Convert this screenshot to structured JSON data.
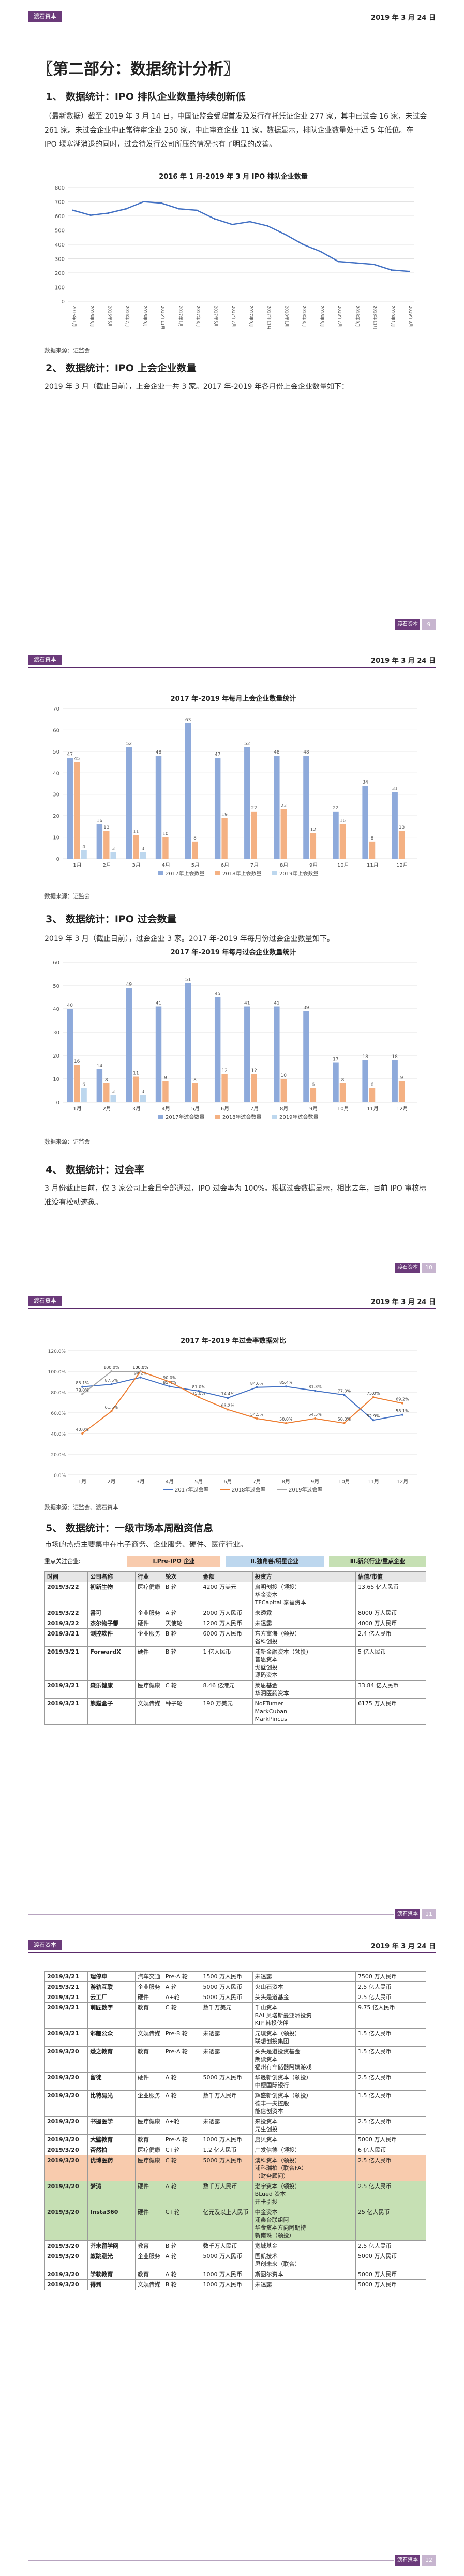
{
  "header": {
    "logo": "渡石资本",
    "date": "2019 年 3 月 24 日"
  },
  "footer": {
    "logo": "渡石资本",
    "pages": [
      "9",
      "10",
      "11",
      "12"
    ]
  },
  "part_title": "〖第二部分：数据统计分析〗",
  "sections": {
    "s1": "1、 数据统计：IPO 排队企业数量持续创新低",
    "s2": "2、 数据统计：IPO 上会企业数量",
    "s3": "3、 数据统计：IPO 过会数量",
    "s4": "4、 数据统计：过会率",
    "s5": "5、 数据统计：一级市场本周融资信息"
  },
  "paragraphs": {
    "p1": "（最新数据）截至 2019 年 3 月 14 日，中国证监会受理首发及发行存托凭证企业 277 家，其中已过会 16 家，未过会 261 家。未过会企业中正常待审企业 250 家，中止审查企业 11 家。数据显示，排队企业数量处于近 5 年低位。在 IPO 堰塞湖消退的同时，过会待发行公司所压的情况也有了明显的改善。",
    "p2": "2019 年 3 月（截止目前），上会企业一共 3 家。2017 年-2019 年各月份上会企业数量如下：",
    "p3": "2019 年 3 月（截止目前），过会企业 3 家。2017 年-2019 年每月份过会企业数量如下。",
    "p4": "3 月份截止目前，仅 3 家公司上会且全部通过，IPO 过会率为 100%。根据过会数据显示，相比去年，目前 IPO 审核标准没有松动迹象。",
    "p5": "市场的热点主要集中在电子商务、企业服务、硬件、医疗行业。"
  },
  "sources": {
    "s1": "数据来源：证监会",
    "s2": "数据来源：证监会",
    "s3": "数据来源：证监会",
    "s4": "数据来源：证监会、渡石资本"
  },
  "charts": {
    "c1_title": "2016 年 1 月-2019 年 3 月 IPO 排队企业数量",
    "c2_title": "2017 年-2019 年每月上会企业数量统计",
    "c3_title": "2017 年-2019 年每月过会企业数量统计",
    "c4_title": "2017 年-2019 年过会率数据对比"
  },
  "chart_data": [
    {
      "type": "line",
      "title": "2016 年 1 月-2019 年 3 月 IPO 排队企业数量",
      "x": [
        "2016年1月",
        "2016年3月",
        "2016年5月",
        "2016年7月",
        "2016年9月",
        "2016年11月",
        "2017年1月",
        "2017年3月",
        "2017年5月",
        "2017年7月",
        "2017年9月",
        "2017年11月",
        "2018年1月",
        "2018年3月",
        "2018年5月",
        "2018年7月",
        "2018年9月",
        "2018年11月",
        "2019年1月",
        "2019年3月"
      ],
      "values": [
        640,
        605,
        620,
        650,
        700,
        690,
        650,
        640,
        580,
        540,
        560,
        530,
        470,
        400,
        350,
        280,
        270,
        260,
        220,
        210
      ],
      "ylim": [
        0,
        800
      ],
      "yticks": [
        0,
        100,
        200,
        300,
        400,
        500,
        600,
        700,
        800
      ]
    },
    {
      "type": "bar",
      "title": "2017 年-2019 年每月上会企业数量统计",
      "categories": [
        "1月",
        "2月",
        "3月",
        "4月",
        "5月",
        "6月",
        "7月",
        "8月",
        "9月",
        "10月",
        "11月",
        "12月"
      ],
      "series": [
        {
          "name": "2017年上会数量",
          "values": [
            47,
            16,
            52,
            48,
            63,
            47,
            52,
            48,
            48,
            22,
            34,
            31
          ],
          "color": "#8eaadb"
        },
        {
          "name": "2018年上会数量",
          "values": [
            45,
            13,
            11,
            10,
            8,
            19,
            22,
            23,
            12,
            16,
            8,
            13
          ],
          "color": "#f4b183"
        },
        {
          "name": "2019年上会数量",
          "values": [
            4,
            3,
            3,
            null,
            null,
            null,
            null,
            null,
            null,
            null,
            null,
            null
          ],
          "color": "#bdd7ee"
        }
      ],
      "ylim": [
        0,
        70
      ],
      "yticks": [
        0,
        10,
        20,
        30,
        40,
        50,
        60,
        70
      ]
    },
    {
      "type": "bar",
      "title": "2017 年-2019 年每月过会企业数量统计",
      "categories": [
        "1月",
        "2月",
        "3月",
        "4月",
        "5月",
        "6月",
        "7月",
        "8月",
        "9月",
        "10月",
        "11月",
        "12月"
      ],
      "series": [
        {
          "name": "2017年过会数量",
          "values": [
            40,
            14,
            49,
            41,
            51,
            45,
            41,
            41,
            39,
            17,
            18,
            18
          ],
          "color": "#8eaadb"
        },
        {
          "name": "2018年过会数量",
          "values": [
            16,
            8,
            11,
            9,
            8,
            12,
            12,
            10,
            6,
            8,
            6,
            9
          ],
          "color": "#f4b183"
        },
        {
          "name": "2019年过会数量",
          "values": [
            6,
            3,
            3,
            null,
            null,
            null,
            null,
            null,
            null,
            null,
            null,
            null
          ],
          "color": "#bdd7ee"
        }
      ],
      "ylim": [
        0,
        60
      ],
      "yticks": [
        0,
        10,
        20,
        30,
        40,
        50,
        60
      ]
    },
    {
      "type": "line",
      "title": "2017 年-2019 年过会率数据对比",
      "categories": [
        "1月",
        "2月",
        "3月",
        "4月",
        "5月",
        "6月",
        "7月",
        "8月",
        "9月",
        "10月",
        "11月",
        "12月"
      ],
      "series": [
        {
          "name": "2017年过会率",
          "values": [
            85.1,
            87.5,
            94.2,
            85.4,
            81.0,
            74.4,
            84.6,
            85.4,
            81.3,
            77.3,
            52.9,
            58.1
          ],
          "color": "#4472c4"
        },
        {
          "name": "2018年过会率",
          "values": [
            40.0,
            61.5,
            100.0,
            90.0,
            75.0,
            63.2,
            54.5,
            50.0,
            54.5,
            50.0,
            75.0,
            69.2
          ],
          "color": "#ed7d31"
        },
        {
          "name": "2019年过会率",
          "values": [
            78.0,
            100.0,
            100.0,
            null,
            null,
            null,
            null,
            null,
            null,
            null,
            null,
            null
          ],
          "color": "#a5a5a5"
        }
      ],
      "ylim": [
        0,
        120
      ],
      "yticks": [
        "0.0%",
        "20.0%",
        "40.0%",
        "60.0%",
        "80.0%",
        "100.0%",
        "120.0%"
      ]
    }
  ],
  "stage_legend": {
    "label": "重点关注企业:",
    "s1": "Ⅰ.Pre-IPO 企业",
    "s2": "Ⅱ.独角兽/明星企业",
    "s3": "Ⅲ.新兴行业/重点企业"
  },
  "table_headers": [
    "时间",
    "公司名称",
    "行业",
    "轮次",
    "金额",
    "投资方",
    "估值/市值"
  ],
  "table1": [
    [
      "2019/3/22",
      "初新生物",
      "医疗健康",
      "B 轮",
      "4200 万美元",
      "启明创投（领投）\n华金资本\nTFCapital 泰福资本",
      "13.65 亿人民币"
    ],
    [
      "2019/3/22",
      "番可",
      "企业服务",
      "A 轮",
      "2000 万人民币",
      "未透露",
      "8000 万人民币"
    ],
    [
      "2019/3/22",
      "杰尔物子都",
      "硬件",
      "天使轮",
      "1200 万人民币",
      "未透露",
      "4000 万人民币"
    ],
    [
      "2019/3/21",
      "测控软件",
      "企业服务",
      "B 轮",
      "6000 万人民币",
      "东方富海（领投）\n省科创投",
      "2.4 亿人民币"
    ],
    [
      "2019/3/21",
      "ForwardX",
      "硬件",
      "B 轮",
      "1 亿人民币",
      "浦新金融资本（领投）\n普思资本\n戈壁创投\n源码资本",
      "5 亿人民币"
    ],
    [
      "2019/3/21",
      "森乐健康",
      "医疗健康",
      "C 轮",
      "8.46 亿港元",
      "莱恩基金\n华润医药资本",
      "33.84 亿人民币"
    ],
    [
      "2019/3/21",
      "熊猫盒子",
      "文娱传媒",
      "种子轮",
      "190 万美元",
      "NoFTumer\nMarkCuban\nMarkPincus",
      "6175 万人民币"
    ]
  ],
  "table2": [
    [
      "2019/3/21",
      "瑞停車",
      "汽车交通",
      "Pre-A 轮",
      "1500 万人民币",
      "未透露",
      "7500 万人民币"
    ],
    [
      "2019/3/21",
      "游轨互联",
      "企业服务",
      "A 轮",
      "5000 万人民币",
      "火山石资本",
      "2.5 亿人民币"
    ],
    [
      "2019/3/21",
      "云工厂",
      "硬件",
      "A+轮",
      "5000 万人民币",
      "头头是道基金",
      "2.5 亿人民币"
    ],
    [
      "2019/3/21",
      "萌匠数字",
      "教育",
      "C 轮",
      "数千万美元",
      "千山资本\nBAI 贝塔斯曼亚洲投资\nKIP 韩投伙伴",
      "9.75 亿人民币"
    ],
    [
      "2019/3/21",
      "邻趣公众",
      "文娱传媒",
      "Pre-B 轮",
      "未透露",
      "元璟资本（领投）\n联想创投集团",
      "1.5 亿人民币"
    ],
    [
      "2019/3/20",
      "悉之教育",
      "教育",
      "Pre-A 轮",
      "未透露",
      "头头是道投资基金\n朗读资本\n福州有车储器阿姨游戏",
      "1.5 亿人民币"
    ],
    [
      "2019/3/20",
      "留徒",
      "硬件",
      "A 轮",
      "5000 万人民币",
      "华晟新创资本（领投）\n中樱国际银行",
      "2.5 亿人民币"
    ],
    [
      "2019/3/20",
      "比特易光",
      "企业服务",
      "A 轮",
      "数千万人民币",
      "辉盛新创资本（领投）\n德丰一夫控股\n能信创资本",
      "1.5 亿人民币"
    ],
    [
      "2019/3/20",
      "书握医学",
      "医疗健康",
      "A+轮",
      "未透露",
      "来投资本\n元生创投",
      "2.5 亿人民币"
    ],
    [
      "2019/3/20",
      "大壁教育",
      "教育",
      "Pre-A 轮",
      "1000 万人民币",
      "启贝资本",
      "5000 万人民币"
    ],
    [
      "2019/3/20",
      "否然拍",
      "医疗健康",
      "C+轮",
      "1.2 亿人民币",
      "广发信德（领投）",
      "6 亿人民币"
    ],
    [
      "2019/3/20",
      "优博医药",
      "医疗健康",
      "C 轮",
      "5000 万人民币",
      "澳科资本（领投）\n浦科瑞柏（联合FA）\n（财务顾问）",
      "2.5 亿人民币"
    ],
    [
      "2019/3/20",
      "梦涛",
      "硬件",
      "A 轮",
      "数千万人民币",
      "渤宇资本（领投）\nBLued 资本\n开卡引投",
      "2.5 亿人民币"
    ],
    [
      "2019/3/20",
      "Insta360",
      "硬件",
      "C+轮",
      "亿元及以上人民币",
      "中金资本\n涌鑫台联组阿\n华金资本方向阿朗持\n新南珠（领投）",
      "25 亿人民币"
    ],
    [
      "2019/3/20",
      "芥末留学网",
      "教育",
      "B 轮",
      "数千万人民币",
      "宽城基金",
      "2.5 亿人民币"
    ],
    [
      "2019/3/20",
      "蚁跳测光",
      "企业服务",
      "A 轮",
      "5000 万人民币",
      "国凯技术\n思创未来（联合）",
      "5000 万人民币"
    ],
    [
      "2019/3/20",
      "学软教育",
      "教育",
      "A 轮",
      "1000 万人民币",
      "斯图尔资本",
      "5000 万人民币"
    ],
    [
      "2019/3/20",
      "得到",
      "文娱传媒",
      "B 轮",
      "1000 万人民币",
      "未透露",
      "5000 万人民币"
    ]
  ]
}
